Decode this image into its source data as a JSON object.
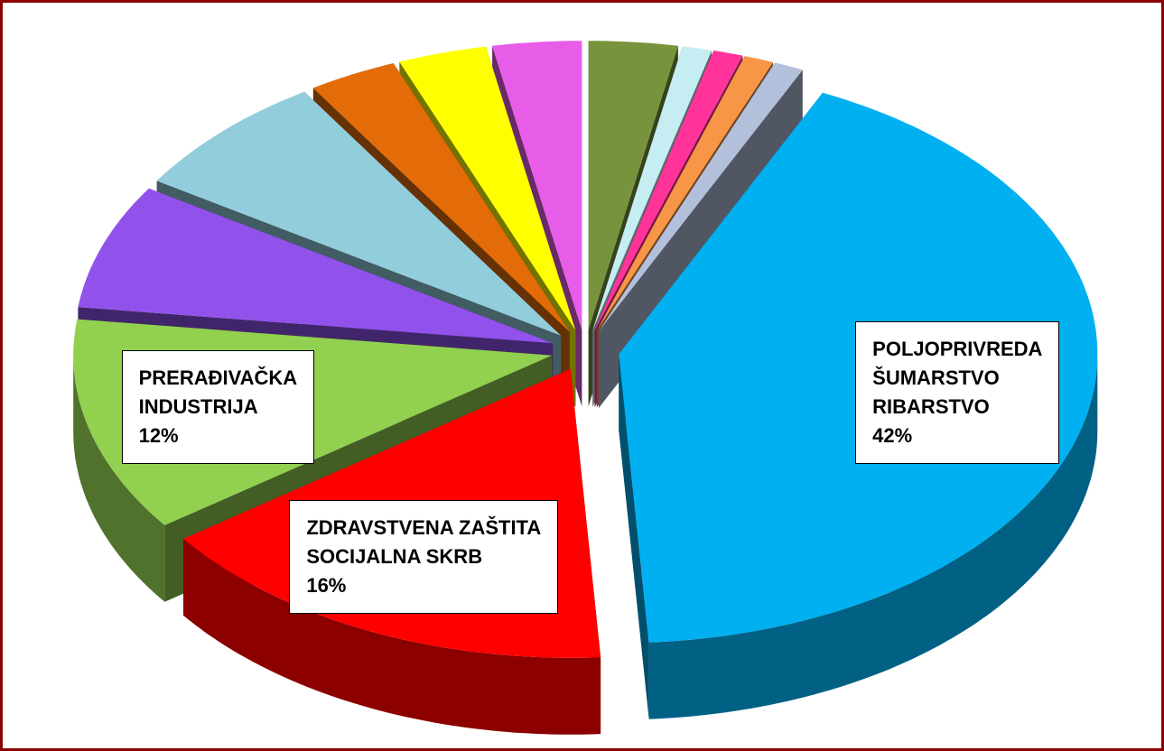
{
  "chart_data": {
    "type": "pie3d",
    "categories": [
      null,
      null,
      null,
      null,
      null,
      "POLJOPRIVREDA\nŠUMARSTVO\nRIBARSTVO",
      "ZDRAVSTVENA ZAŠTITA\nSOCIJALNA SKRB",
      "PRERAĐIVAČKA\nINDUSTRIJA",
      null,
      null,
      null,
      null,
      null
    ],
    "values": [
      3,
      1,
      1,
      1,
      1,
      42,
      16,
      12,
      7,
      7,
      3,
      3,
      3
    ],
    "value_labels": [
      null,
      null,
      null,
      null,
      null,
      "42%",
      "16%",
      "12%",
      null,
      null,
      null,
      null,
      null
    ],
    "colors": [
      "#77933c",
      "#c6eef2",
      "#ff3399",
      "#f79646",
      "#b3c0dc",
      "#00b0f0",
      "#ff0000",
      "#92d050",
      "#9152ec",
      "#92cddc",
      "#e36c09",
      "#ffff00",
      "#e85de8"
    ],
    "exploded": true
  }
}
